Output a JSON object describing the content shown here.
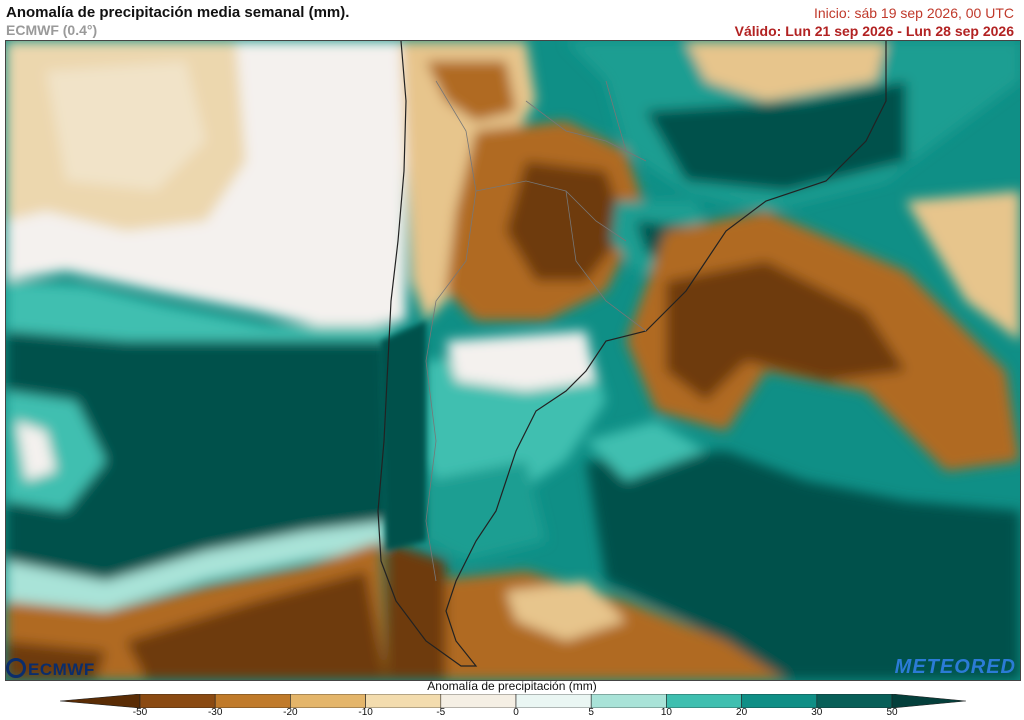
{
  "header": {
    "title": "Anomalía de precipitación media semanal (mm).",
    "model": "ECMWF (0.4°)",
    "init": "Inicio:  sáb 19 sep 2026, 00 UTC",
    "valid": "Válido: Lun 21 sep 2026 - Lun 28 sep 2026"
  },
  "logos": {
    "left": "ECMWF",
    "right": "METEORED"
  },
  "colorbar": {
    "title": "Anomalía de precipitación (mm)",
    "ticks": [
      "-50",
      "-30",
      "-20",
      "-10",
      "-5",
      "0",
      "5",
      "10",
      "20",
      "30",
      "50"
    ],
    "colors": [
      "#5a2c05",
      "#8b4a12",
      "#c07a2a",
      "#e4b56a",
      "#f3dcae",
      "#f5efe4",
      "#eaf6f3",
      "#a9e3d8",
      "#3fbfb0",
      "#0f8f86",
      "#085f58",
      "#043f3b"
    ]
  },
  "map": {
    "region": "South America - southern cone",
    "colors": {
      "dry_strong": "#6e3a0c",
      "dry": "#b06b22",
      "dry_light": "#e7c58c",
      "neutral": "#f4f1ee",
      "wet_light": "#a9e3d8",
      "wet": "#1a9e92",
      "wet_strong": "#05514c"
    }
  }
}
